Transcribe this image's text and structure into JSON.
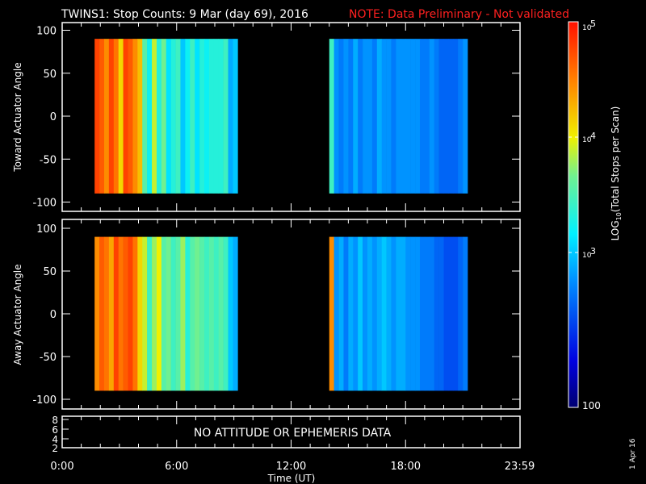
{
  "title": {
    "main": "TWINS1: Stop Counts:  9 Mar (day  69), 2016",
    "note": "NOTE: Data Preliminary - Not validated",
    "note_color": "#ff2020"
  },
  "chart_data": {
    "type": "heatmap",
    "xlabel": "Time (UT)",
    "x_ticks": [
      {
        "h": 0,
        "label": "0:00"
      },
      {
        "h": 6,
        "label": "6:00"
      },
      {
        "h": 12,
        "label": "12:00"
      },
      {
        "h": 18,
        "label": "18:00"
      },
      {
        "h": 23.98,
        "label": "23:59"
      }
    ],
    "xlim_hours": [
      0,
      24
    ],
    "colorbar": {
      "label_pre": "LOG",
      "label_sub": "10",
      "label_post": "(Total Stops per Scan)",
      "ticks": [
        {
          "label": "10",
          "exp": "5"
        },
        {
          "label": "10",
          "exp": "4"
        },
        {
          "label": "10",
          "exp": "3"
        },
        {
          "label": "100",
          "exp": ""
        }
      ],
      "range_log10": [
        2,
        5
      ]
    },
    "panels": [
      {
        "ylabel": "Toward Actuator Angle",
        "ylim": [
          -100,
          100
        ],
        "y_ticks": [
          "100",
          "50",
          "0",
          "-50",
          "-100"
        ],
        "y_tick_values": [
          100,
          50,
          0,
          -50,
          -100
        ],
        "angle_range": [
          -90,
          90
        ],
        "blocks": [
          {
            "start_h": 1.7,
            "step_h": 0.25,
            "log10_counts": [
              4.8,
              4.7,
              4.5,
              4.8,
              4.6,
              4.2,
              4.8,
              4.7,
              4.5,
              4.3,
              3.7,
              3.4,
              4.0,
              3.5,
              3.8,
              3.3,
              3.5,
              3.6,
              3.2,
              3.4,
              3.6,
              3.3,
              3.5,
              3.4,
              3.5,
              3.5,
              3.5,
              3.6,
              3.1,
              3.2
            ]
          },
          {
            "start_h": 14.0,
            "step_h": 0.25,
            "log10_counts": [
              3.6,
              3.0,
              2.9,
              3.0,
              2.9,
              3.1,
              2.9,
              3.0,
              3.0,
              2.9,
              3.1,
              3.0,
              3.0,
              2.9,
              3.0,
              3.0,
              3.0,
              3.0,
              3.0,
              2.9,
              2.9,
              3.0,
              2.9,
              2.8,
              2.8,
              2.8,
              2.8,
              2.9,
              3.0
            ]
          }
        ]
      },
      {
        "ylabel": "Away Actuator Angle",
        "ylim": [
          -100,
          100
        ],
        "y_ticks": [
          "100",
          "50",
          "0",
          "-50",
          "-100"
        ],
        "y_tick_values": [
          100,
          50,
          0,
          -50,
          -100
        ],
        "angle_range": [
          -90,
          90
        ],
        "blocks": [
          {
            "start_h": 1.7,
            "step_h": 0.25,
            "log10_counts": [
              4.5,
              4.7,
              4.6,
              4.4,
              4.8,
              4.6,
              4.7,
              4.8,
              4.6,
              4.2,
              4.0,
              3.6,
              3.9,
              4.1,
              3.7,
              3.8,
              3.6,
              3.7,
              3.9,
              3.5,
              3.7,
              3.8,
              3.7,
              3.6,
              3.7,
              3.6,
              3.7,
              3.6,
              3.2,
              3.1
            ]
          },
          {
            "start_h": 14.0,
            "step_h": 0.25,
            "log10_counts": [
              4.5,
              3.0,
              3.1,
              2.9,
              3.1,
              3.0,
              3.2,
              3.0,
              3.1,
              3.0,
              3.1,
              3.2,
              3.1,
              3.0,
              3.1,
              3.1,
              3.0,
              3.0,
              3.0,
              2.9,
              2.9,
              2.9,
              2.8,
              2.8,
              2.7,
              2.7,
              2.7,
              2.8,
              2.9
            ]
          }
        ]
      },
      {
        "message": "NO ATTITUDE OR EPHEMERIS DATA",
        "y_ticks": [
          "8",
          "6",
          "4",
          "2"
        ]
      }
    ]
  },
  "footer": {
    "date": "1 Apr 16"
  }
}
